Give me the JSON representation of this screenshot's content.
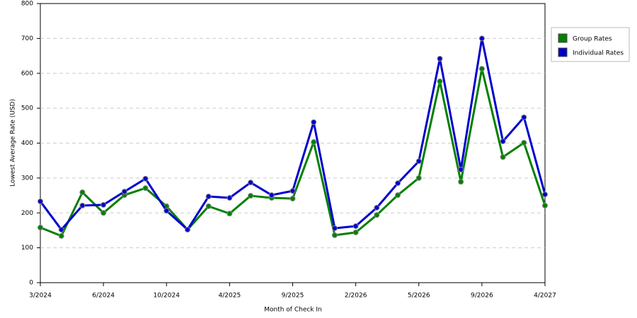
{
  "chart_data": {
    "type": "line",
    "x_label": "Month of Check In",
    "y_label": "Lowest Average Rate (USD)",
    "categories": [
      "3/2024",
      null,
      null,
      "6/2024",
      null,
      null,
      "10/2024",
      null,
      null,
      "4/2025",
      null,
      null,
      "9/2025",
      null,
      null,
      "2/2026",
      null,
      null,
      "5/2026",
      null,
      null,
      "9/2026",
      null,
      null,
      "4/2027"
    ],
    "series": [
      {
        "name": "Group Rates",
        "color": "#008000",
        "values": [
          158,
          134,
          259,
          200,
          251,
          271,
          219,
          152,
          219,
          198,
          249,
          243,
          241,
          403,
          136,
          144,
          194,
          251,
          300,
          577,
          289,
          613,
          360,
          401,
          221
        ]
      },
      {
        "name": "Individual Rates",
        "color": "#0000cc",
        "values": [
          233,
          152,
          221,
          223,
          261,
          298,
          206,
          152,
          247,
          243,
          287,
          251,
          263,
          460,
          156,
          162,
          215,
          285,
          348,
          642,
          324,
          700,
          405,
          474,
          253
        ]
      }
    ],
    "ylim": [
      0,
      800
    ],
    "yticks": [
      0,
      100,
      200,
      300,
      400,
      500,
      600,
      700,
      800
    ],
    "grid": true,
    "legend": "right"
  }
}
